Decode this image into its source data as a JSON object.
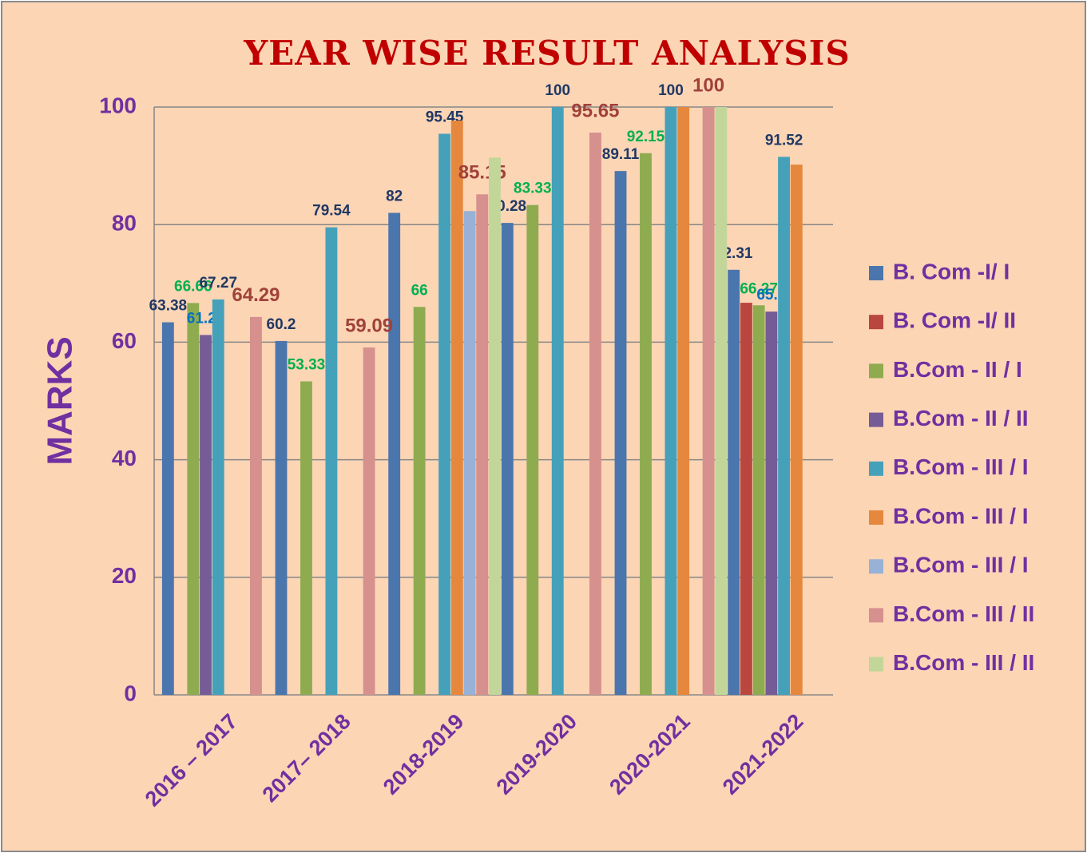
{
  "chart_data": {
    "type": "bar",
    "title": "YEAR WISE RESULT ANALYSIS",
    "y_label": "MARKS",
    "categories": [
      "2016 – 2017",
      "2017– 2018",
      "2018-2019",
      "2019-2020",
      "2020-2021",
      "2021-2022"
    ],
    "ylim": [
      0,
      100
    ],
    "yticks": [
      0,
      20,
      40,
      60,
      80,
      100
    ],
    "grid": true,
    "legend": "right",
    "series": [
      {
        "name": "B. Com -I/ I",
        "color": "#4a76ad",
        "label_color": "#1f3864",
        "values": [
          63.38,
          60.2,
          82,
          80.28,
          89.11,
          72.31
        ],
        "value_labels": [
          "63.38",
          "60.2",
          "82",
          "80.28",
          "89.11",
          "72.31"
        ]
      },
      {
        "name": "B. Com -I/ II",
        "color": "#b9473f",
        "label_color": "#9e3b33",
        "values": [
          null,
          null,
          null,
          null,
          null,
          66.7
        ],
        "value_labels": [
          null,
          null,
          null,
          null,
          null,
          null
        ]
      },
      {
        "name": "B.Com - II / I",
        "color": "#8eac4f",
        "label_color": "#00b050",
        "values": [
          66.66,
          53.33,
          66,
          83.33,
          92.15,
          66.27
        ],
        "value_labels": [
          "66.66",
          "53.33",
          "66",
          "83.33",
          "92.15",
          "66.27"
        ]
      },
      {
        "name": "B.Com - II / II",
        "color": "#755c96",
        "label_color": "#0070c0",
        "values": [
          61.22,
          null,
          null,
          null,
          null,
          65.2
        ],
        "value_labels": [
          "61.22",
          null,
          null,
          null,
          null,
          "65.2"
        ]
      },
      {
        "name": "B.Com - III / I",
        "color": "#45a1ba",
        "label_color": "#1f3864",
        "values": [
          67.27,
          79.54,
          95.45,
          100,
          100,
          91.52
        ],
        "value_labels": [
          "67.27",
          "79.54",
          "95.45",
          "100",
          "100",
          "91.52"
        ]
      },
      {
        "name": "B.Com - III / I",
        "color": "#e5883e",
        "label_color": "#9e3b33",
        "values": [
          null,
          null,
          97.7,
          null,
          100,
          90.2
        ],
        "value_labels": [
          null,
          null,
          null,
          null,
          null,
          null
        ]
      },
      {
        "name": "B.Com - III / I",
        "color": "#98b1d6",
        "label_color": "#1f3864",
        "values": [
          null,
          null,
          82.3,
          null,
          null,
          null
        ],
        "value_labels": [
          null,
          null,
          null,
          null,
          null,
          null
        ]
      },
      {
        "name": "B.Com - III / II",
        "color": "#d6908d",
        "label_color": "#a0413a",
        "values": [
          64.29,
          59.09,
          85.15,
          95.65,
          100,
          null
        ],
        "value_labels": [
          "64.29",
          "59.09",
          "85.15",
          "95.65",
          "100",
          null
        ]
      },
      {
        "name": "B.Com - III / II",
        "color": "#c2d69a",
        "label_color": "#1f3864",
        "values": [
          null,
          null,
          91.4,
          null,
          100,
          null
        ],
        "value_labels": [
          null,
          null,
          null,
          null,
          null,
          null
        ]
      }
    ]
  }
}
